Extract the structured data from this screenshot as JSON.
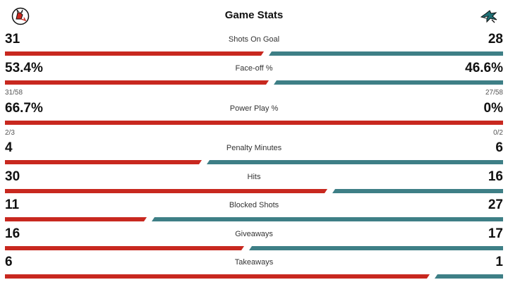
{
  "header": {
    "title": "Game Stats",
    "home_logo": "devils-logo",
    "away_logo": "sharks-logo"
  },
  "colors": {
    "home": "#c8281f",
    "away": "#3e7f86"
  },
  "stats": [
    {
      "label": "Shots On Goal",
      "home": "31",
      "away": "28",
      "home_share": 0.525
    },
    {
      "label": "Face-off %",
      "home": "53.4%",
      "away": "46.6%",
      "home_share": 0.534,
      "home_sub": "31/58",
      "away_sub": "27/58"
    },
    {
      "label": "Power Play %",
      "home": "66.7%",
      "away": "0%",
      "home_share": 1.0,
      "home_sub": "2/3",
      "away_sub": "0/2"
    },
    {
      "label": "Penalty Minutes",
      "home": "4",
      "away": "6",
      "home_share": 0.4
    },
    {
      "label": "Hits",
      "home": "30",
      "away": "16",
      "home_share": 0.652
    },
    {
      "label": "Blocked Shots",
      "home": "11",
      "away": "27",
      "home_share": 0.289
    },
    {
      "label": "Giveaways",
      "home": "16",
      "away": "17",
      "home_share": 0.485
    },
    {
      "label": "Takeaways",
      "home": "6",
      "away": "1",
      "home_share": 0.857
    }
  ]
}
